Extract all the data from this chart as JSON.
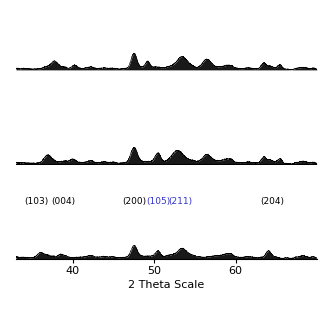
{
  "x_min": 33,
  "x_max": 70,
  "xlabel": "2 Theta Scale",
  "xticks": [
    40,
    50,
    60
  ],
  "background_color": "#ffffff",
  "annotations_bottom": [
    {
      "label": "(103)",
      "x": 35.5,
      "fontsize": 6.5,
      "color": "#000000"
    },
    {
      "label": "(004)",
      "x": 38.8,
      "fontsize": 6.5,
      "color": "#000000"
    },
    {
      "label": "(200)",
      "x": 47.5,
      "fontsize": 6.5,
      "color": "#000000"
    },
    {
      "label": "(105)",
      "x": 50.5,
      "fontsize": 6.5,
      "color": "#3333cc"
    },
    {
      "label": "(211)",
      "x": 53.2,
      "fontsize": 6.5,
      "color": "#3333cc"
    },
    {
      "label": "(204)",
      "x": 64.5,
      "fontsize": 6.5,
      "color": "#000000"
    }
  ],
  "peak_positions_top": [
    37.8,
    40.2,
    47.5,
    49.2,
    53.5,
    56.5,
    63.5,
    65.5
  ],
  "peak_heights_top": [
    0.28,
    0.15,
    0.55,
    0.28,
    0.42,
    0.38,
    0.25,
    0.2
  ],
  "peak_widths_top": [
    0.8,
    0.6,
    0.6,
    0.5,
    1.2,
    1.0,
    0.5,
    0.5
  ],
  "peak_positions_mid": [
    37.0,
    40.0,
    47.5,
    50.5,
    53.0,
    56.5,
    63.5,
    65.5
  ],
  "peak_heights_mid": [
    0.2,
    0.14,
    0.45,
    0.3,
    0.35,
    0.28,
    0.22,
    0.18
  ],
  "peak_widths_mid": [
    0.9,
    0.7,
    0.7,
    0.6,
    1.3,
    1.0,
    0.5,
    0.5
  ],
  "peak_positions_bot": [
    36.0,
    38.5,
    47.5,
    50.5,
    53.5,
    64.0
  ],
  "peak_heights_bot": [
    0.18,
    0.08,
    0.38,
    0.2,
    0.28,
    0.18
  ],
  "peak_widths_bot": [
    0.7,
    0.5,
    0.6,
    0.5,
    1.0,
    0.5
  ]
}
